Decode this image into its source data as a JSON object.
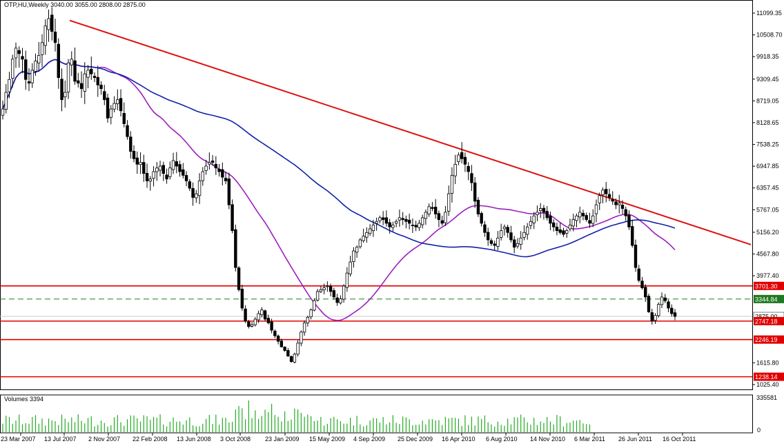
{
  "header": {
    "symbol_line": "OTP,HU,Weekly  3040.00 3055.00 2808.00 2875.00"
  },
  "volume_panel": {
    "label": "Volumes 3394",
    "axis_top": "335581",
    "axis_zero": "0"
  },
  "colors": {
    "bull": "#000000",
    "bear": "#000000",
    "trendline": "#dd1010",
    "ma_fast": "#9b1dbf",
    "ma_slow": "#1020a8",
    "support": "#e00000",
    "dashed_level": "#1f7a1f",
    "volume": "#22aa22"
  },
  "chart_data": {
    "type": "candlestick",
    "title": "OTP,HU,Weekly",
    "ohlc_last": {
      "open": 3040.0,
      "high": 3055.0,
      "low": 2808.0,
      "close": 2875.0
    },
    "y_axis_ticks": [
      "11099.35",
      "10508.70",
      "9918.35",
      "9309.45",
      "8719.05",
      "8128.65",
      "7538.25",
      "6947.85",
      "6357.45",
      "5767.05",
      "5156.20",
      "4567.80",
      "3977.40",
      "1615.80",
      "1025.40"
    ],
    "x_axis_ticks": [
      "23 Mar 2007",
      "13 Jul 2007",
      "2 Nov 2007",
      "22 Feb 2008",
      "13 Jun 2008",
      "3 Oct 2008",
      "23 Jan 2009",
      "15 May 2009",
      "4 Sep 2009",
      "25 Dec 2009",
      "16 Apr 2010",
      "6 Aug 2010",
      "14 Nov 2010",
      "6 Mar 2011",
      "26 Jun 2011",
      "16 Oct 2011"
    ],
    "ylim": [
      1025.4,
      11099.35
    ],
    "price_markers": [
      {
        "label": "3701.30",
        "value": 3701.3,
        "style": "support"
      },
      {
        "label": "3344.84",
        "value": 3344.84,
        "style": "dashed"
      },
      {
        "label": "2875.00",
        "value": 2875.0,
        "style": "current"
      },
      {
        "label": "2747.18",
        "value": 2747.18,
        "style": "support"
      },
      {
        "label": "2246.19",
        "value": 2246.19,
        "style": "support"
      },
      {
        "label": "1238.14",
        "value": 1238.14,
        "style": "support"
      }
    ],
    "trendline": {
      "from": {
        "x": "13 Jul 2007",
        "y": 10900
      },
      "to": {
        "x": "16 Oct 2011",
        "y": 5400
      }
    },
    "candles": {
      "closes": [
        8500,
        8950,
        9300,
        9850,
        10150,
        10000,
        9850,
        9300,
        9200,
        9550,
        9800,
        9950,
        10300,
        10750,
        10950,
        10600,
        10300,
        9350,
        8750,
        8950,
        9750,
        9850,
        9250,
        9200,
        9050,
        9450,
        9550,
        9450,
        9350,
        9150,
        9050,
        8750,
        8250,
        8500,
        8650,
        8750,
        8450,
        8100,
        7750,
        7350,
        7150,
        7000,
        7050,
        6750,
        6550,
        6600,
        6800,
        6900,
        6950,
        6750,
        6600,
        6900,
        7100,
        6950,
        6800,
        6700,
        6550,
        6350,
        6100,
        6200,
        6550,
        6800,
        6950,
        7050,
        7050,
        6900,
        6800,
        6650,
        6550,
        5900,
        5200,
        4200,
        3600,
        3100,
        2750,
        2600,
        2650,
        2800,
        2950,
        3050,
        2800,
        2700,
        2500,
        2350,
        2200,
        2050,
        1950,
        1800,
        1650,
        1850,
        2150,
        2450,
        2700,
        2850,
        3050,
        3300,
        3550,
        3600,
        3650,
        3700,
        3550,
        3400,
        3250,
        3350,
        3700,
        4050,
        4350,
        4650,
        4750,
        4950,
        5050,
        5150,
        5250,
        5350,
        5450,
        5550,
        5500,
        5400,
        5300,
        5350,
        5450,
        5550,
        5500,
        5450,
        5400,
        5350,
        5300,
        5400,
        5550,
        5700,
        5850,
        5800,
        5650,
        5500,
        5400,
        5700,
        6200,
        6700,
        7000,
        7250,
        7150,
        7000,
        6800,
        6500,
        6000,
        5650,
        5400,
        5150,
        4950,
        4850,
        4800,
        5000,
        5200,
        5300,
        5150,
        4950,
        4750,
        4850,
        5000,
        5150,
        5300,
        5450,
        5600,
        5700,
        5800,
        5700,
        5550,
        5400,
        5300,
        5200,
        5150,
        5100,
        5200,
        5350,
        5500,
        5600,
        5700,
        5600,
        5500,
        5400,
        5600,
        5900,
        6150,
        6300,
        6200,
        6100,
        6000,
        5900,
        5950,
        5800,
        5600,
        5300,
        4800,
        4200,
        3850,
        3650,
        3400,
        3000,
        2750,
        2900,
        3200,
        3400,
        3300,
        3100,
        2950,
        2875
      ]
    },
    "indicators": {
      "ma_fast_name": "Moving average (purple)",
      "ma_slow_name": "Moving average (blue)"
    }
  }
}
